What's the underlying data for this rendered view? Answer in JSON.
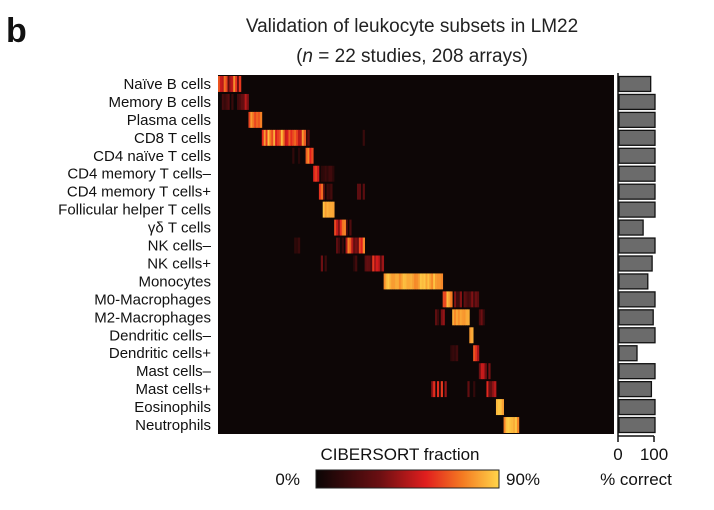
{
  "panel_label": "b",
  "chart_data": {
    "type": "heatmap",
    "title": "Validation of leukocyte subsets in LM22",
    "subtitle_n": "n",
    "subtitle_rest": " = 22 studies, 208 arrays)",
    "subtitle_open": "(",
    "rows": [
      "Naïve B cells",
      "Memory B cells",
      "Plasma cells",
      "CD8 T cells",
      "CD4 naïve T cells",
      "CD4 memory T cells–",
      "CD4 memory T cells+",
      "Follicular helper T cells",
      "γδ T cells",
      "NK cells–",
      "NK cells+",
      "Monocytes",
      "M0-Macrophages",
      "M2-Macrophages",
      "Dendritic cells–",
      "Dendritic cells+",
      "Mast cells–",
      "Mast cells+",
      "Eosinophils",
      "Neutrophils"
    ],
    "n_arrays": 208,
    "colorbar": {
      "label": "CIBERSORT fraction",
      "min_label": "0%",
      "max_label": "90%"
    },
    "blocks": [
      {
        "row": 0,
        "start": 0,
        "end": 12,
        "level": 0.55,
        "spread": 0.3
      },
      {
        "row": 1,
        "start": 12,
        "end": 16,
        "level": 0.5,
        "spread": 0.3
      },
      {
        "row": 2,
        "start": 16,
        "end": 23,
        "level": 0.78,
        "spread": 0.1
      },
      {
        "row": 3,
        "start": 23,
        "end": 46,
        "level": 0.75,
        "spread": 0.25
      },
      {
        "row": 4,
        "start": 46,
        "end": 50,
        "level": 0.72,
        "spread": 0.15
      },
      {
        "row": 5,
        "start": 50,
        "end": 53,
        "level": 0.7,
        "spread": 0.15
      },
      {
        "row": 6,
        "start": 53,
        "end": 55,
        "level": 0.72,
        "spread": 0.1
      },
      {
        "row": 7,
        "start": 55,
        "end": 61,
        "level": 0.92,
        "spread": 0.05
      },
      {
        "row": 8,
        "start": 61,
        "end": 67,
        "level": 0.55,
        "spread": 0.3
      },
      {
        "row": 9,
        "start": 67,
        "end": 77,
        "level": 0.55,
        "spread": 0.3
      },
      {
        "row": 10,
        "start": 77,
        "end": 87,
        "level": 0.4,
        "spread": 0.3
      },
      {
        "row": 11,
        "start": 87,
        "end": 118,
        "level": 0.9,
        "spread": 0.08
      },
      {
        "row": 12,
        "start": 118,
        "end": 123,
        "level": 0.75,
        "spread": 0.2
      },
      {
        "row": 13,
        "start": 123,
        "end": 132,
        "level": 0.9,
        "spread": 0.08
      },
      {
        "row": 14,
        "start": 132,
        "end": 134,
        "level": 0.9,
        "spread": 0.05
      },
      {
        "row": 15,
        "start": 134,
        "end": 137,
        "level": 0.65,
        "spread": 0.2
      },
      {
        "row": 16,
        "start": 137,
        "end": 141,
        "level": 0.55,
        "spread": 0.2
      },
      {
        "row": 17,
        "start": 141,
        "end": 146,
        "level": 0.55,
        "spread": 0.3
      },
      {
        "row": 18,
        "start": 146,
        "end": 150,
        "level": 0.92,
        "spread": 0.05
      },
      {
        "row": 19,
        "start": 150,
        "end": 158,
        "level": 0.9,
        "spread": 0.08
      }
    ],
    "faint": [
      {
        "row": 1,
        "start": 2,
        "end": 12,
        "level": 0.18
      },
      {
        "row": 3,
        "start": 45,
        "end": 48,
        "level": 0.18
      },
      {
        "row": 3,
        "start": 75,
        "end": 77,
        "level": 0.15
      },
      {
        "row": 4,
        "start": 38,
        "end": 44,
        "level": 0.12
      },
      {
        "row": 5,
        "start": 54,
        "end": 62,
        "level": 0.12
      },
      {
        "row": 6,
        "start": 55,
        "end": 62,
        "level": 0.2
      },
      {
        "row": 6,
        "start": 72,
        "end": 77,
        "level": 0.3
      },
      {
        "row": 8,
        "start": 67,
        "end": 72,
        "level": 0.3
      },
      {
        "row": 8,
        "start": 76,
        "end": 82,
        "level": 0.25
      },
      {
        "row": 9,
        "start": 40,
        "end": 44,
        "level": 0.12
      },
      {
        "row": 9,
        "start": 62,
        "end": 66,
        "level": 0.2
      },
      {
        "row": 10,
        "start": 53,
        "end": 58,
        "level": 0.25
      },
      {
        "row": 10,
        "start": 70,
        "end": 76,
        "level": 0.15
      },
      {
        "row": 12,
        "start": 124,
        "end": 137,
        "level": 0.3
      },
      {
        "row": 13,
        "start": 114,
        "end": 120,
        "level": 0.3
      },
      {
        "row": 13,
        "start": 136,
        "end": 140,
        "level": 0.25
      },
      {
        "row": 15,
        "start": 122,
        "end": 126,
        "level": 0.12
      },
      {
        "row": 17,
        "start": 112,
        "end": 120,
        "level": 0.45
      },
      {
        "row": 17,
        "start": 128,
        "end": 136,
        "level": 0.2
      },
      {
        "row": 16,
        "start": 140,
        "end": 143,
        "level": 0.3
      }
    ],
    "bar_chart": {
      "type": "bar",
      "xlabel": "% correct",
      "xlim": [
        0,
        100
      ],
      "ticks": [
        "0",
        "100"
      ],
      "values": [
        88,
        100,
        100,
        100,
        100,
        100,
        100,
        100,
        67,
        100,
        92,
        80,
        100,
        95,
        100,
        50,
        100,
        90,
        100,
        100
      ],
      "bar_color": "#6b6b6b"
    },
    "colors": {
      "background": "#111111",
      "low": "#1a0a0a",
      "mid": "#e01e1e",
      "high": "#ffd14a"
    }
  }
}
